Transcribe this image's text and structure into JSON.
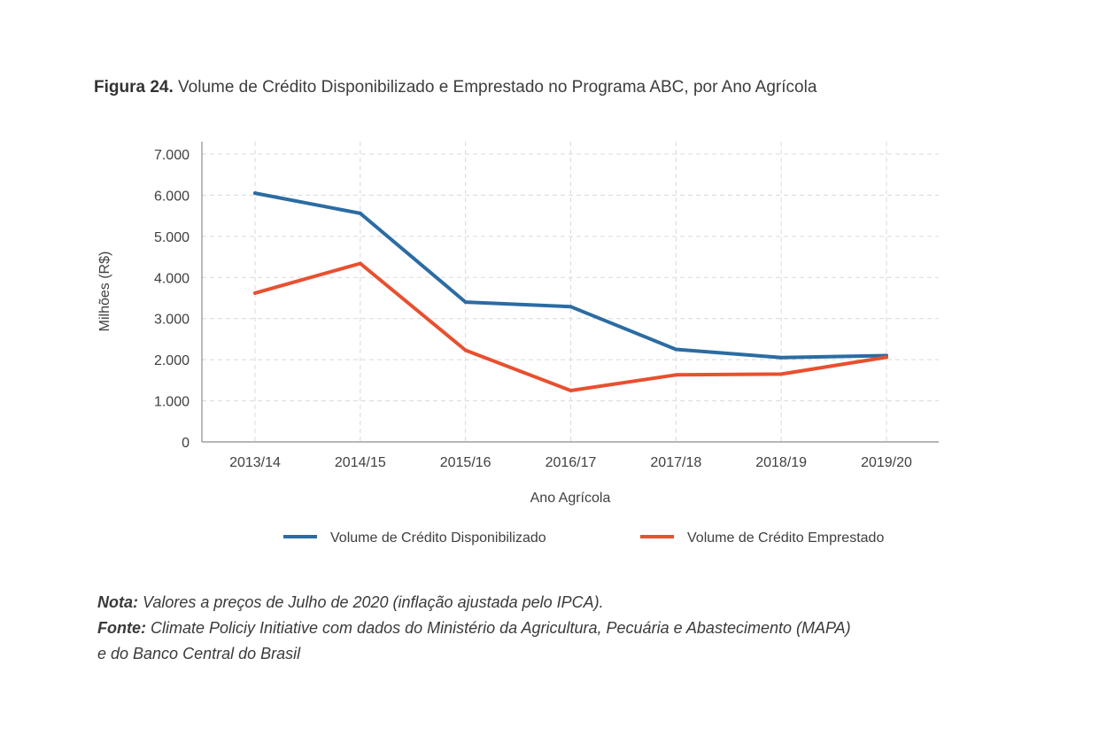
{
  "figure": {
    "label": "Figura 24.",
    "title": "Volume de Crédito Disponibilizado e Emprestado no Programa ABC, por Ano Agrícola"
  },
  "chart_data": {
    "type": "line",
    "xlabel": "Ano Agrícola",
    "ylabel": "Milhões (R$)",
    "categories": [
      "2013/14",
      "2014/15",
      "2015/16",
      "2016/17",
      "2017/18",
      "2018/19",
      "2019/20"
    ],
    "ylim": [
      0,
      7000
    ],
    "yticks": [
      0,
      1000,
      2000,
      3000,
      4000,
      5000,
      6000,
      7000
    ],
    "ytick_labels": [
      "0",
      "1.000",
      "2.000",
      "3.000",
      "4.000",
      "5.000",
      "6.000",
      "7.000"
    ],
    "grid": true,
    "legend_position": "bottom",
    "series": [
      {
        "name": "Volume de Crédito Disponibilizado",
        "color": "#2b6ca3",
        "values": [
          6050,
          5560,
          3400,
          3290,
          2250,
          2050,
          2100
        ]
      },
      {
        "name": "Volume de Crédito Emprestado",
        "color": "#e8502f",
        "values": [
          3620,
          4340,
          2230,
          1250,
          1630,
          1650,
          2060
        ]
      }
    ]
  },
  "notes": {
    "nota_label": "Nota:",
    "nota_text": " Valores a preços de Julho de 2020 (inflação ajustada pelo IPCA).",
    "fonte_label": "Fonte:",
    "fonte_text": " Climate Policiy Initiative com dados do Ministério da Agricultura, Pecuária e Abastecimento (MAPA)",
    "fonte_text_2": "e do Banco Central do Brasil"
  }
}
